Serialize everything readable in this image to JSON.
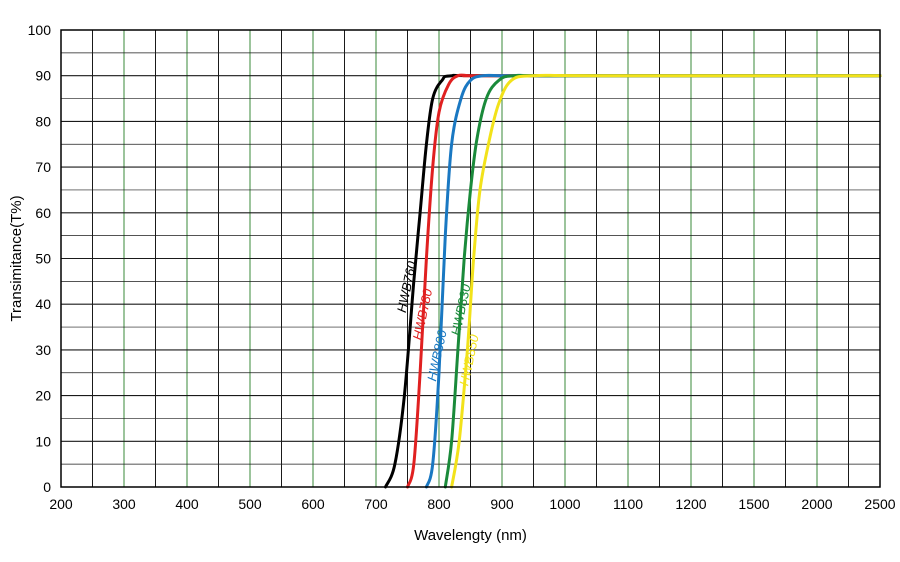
{
  "chart_data": {
    "type": "line",
    "title": "",
    "xlabel": "Wavelengty (nm)",
    "ylabel": "Transimitance(T%)",
    "ylim": [
      0,
      100
    ],
    "y_ticks": [
      0,
      10,
      20,
      30,
      40,
      50,
      60,
      70,
      80,
      90,
      100
    ],
    "x_tick_labels": [
      "200",
      "300",
      "400",
      "500",
      "600",
      "700",
      "800",
      "900",
      "1000",
      "1100",
      "1200",
      "1500",
      "2000",
      "2500"
    ],
    "x_minor_divisions": 2,
    "grid": true,
    "x_scale_note": "non-uniform axis; each labeled tick is an equal step",
    "series": [
      {
        "name": "HWB760",
        "color": "#000000",
        "x": [
          715,
          730,
          745,
          760,
          770,
          780,
          790,
          805,
          820,
          900,
          2500
        ],
        "y": [
          0,
          5,
          20,
          45,
          60,
          75,
          85,
          89,
          90,
          90,
          90
        ]
      },
      {
        "name": "HWB780",
        "color": "#e02020",
        "x": [
          750,
          760,
          770,
          780,
          790,
          800,
          815,
          830,
          850,
          900,
          2500
        ],
        "y": [
          0,
          5,
          25,
          50,
          70,
          82,
          88,
          90,
          90,
          90,
          90
        ]
      },
      {
        "name": "HWB800",
        "color": "#1a78c2",
        "x": [
          780,
          790,
          800,
          810,
          820,
          835,
          850,
          870,
          900,
          950,
          2500
        ],
        "y": [
          0,
          5,
          25,
          55,
          75,
          85,
          89,
          90,
          90,
          90,
          90
        ]
      },
      {
        "name": "HWB830",
        "color": "#1a8a3a",
        "x": [
          810,
          820,
          830,
          840,
          850,
          860,
          875,
          895,
          920,
          1000,
          2500
        ],
        "y": [
          0,
          10,
          30,
          50,
          65,
          76,
          85,
          89,
          90,
          90,
          90
        ]
      },
      {
        "name": "HWB850",
        "color": "#f2e21a",
        "x": [
          820,
          832,
          845,
          855,
          865,
          880,
          895,
          915,
          950,
          1050,
          2500
        ],
        "y": [
          0,
          10,
          30,
          50,
          65,
          76,
          84,
          89,
          90,
          90,
          90
        ]
      }
    ]
  }
}
